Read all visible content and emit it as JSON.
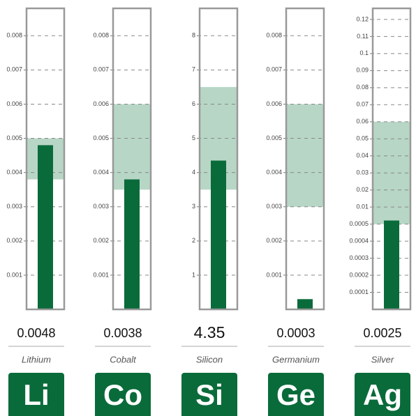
{
  "chart_data": [
    {
      "type": "gauge",
      "name": "Lithium",
      "symbol": "Li",
      "value": 0.0048,
      "band": [
        0.0038,
        0.005
      ],
      "ylim": [
        0,
        0.0088
      ],
      "yticks": [
        0.001,
        0.002,
        0.003,
        0.004,
        0.005,
        0.006,
        0.007,
        0.008
      ],
      "color": "#0a6b3a",
      "band_color": "#b7d6c6"
    },
    {
      "type": "gauge",
      "name": "Cobalt",
      "symbol": "Co",
      "value": 0.0038,
      "band": [
        0.0035,
        0.006
      ],
      "ylim": [
        0,
        0.0088
      ],
      "yticks": [
        0.001,
        0.002,
        0.003,
        0.004,
        0.005,
        0.006,
        0.007,
        0.008
      ],
      "color": "#0a6b3a",
      "band_color": "#b7d6c6"
    },
    {
      "type": "gauge",
      "name": "Silicon",
      "symbol": "Si",
      "value": 4.35,
      "band": [
        3.5,
        6.5
      ],
      "ylim": [
        0,
        8.8
      ],
      "yticks": [
        1,
        2,
        3,
        4,
        5,
        6,
        7,
        8
      ],
      "color": "#0a6b3a",
      "band_color": "#b7d6c6"
    },
    {
      "type": "gauge",
      "name": "Germanium",
      "symbol": "Ge",
      "value": 0.0003,
      "band": [
        0.003,
        0.006
      ],
      "ylim": [
        0,
        0.0088
      ],
      "yticks": [
        0.001,
        0.002,
        0.003,
        0.004,
        0.005,
        0.006,
        0.007,
        0.008
      ],
      "color": "#0a6b3a",
      "band_color": "#b7d6c6"
    },
    {
      "type": "gauge",
      "name": "Silver",
      "symbol": "Ag",
      "value": 0.0025,
      "band": [
        0.0005,
        0.06
      ],
      "ylim": [
        0,
        0.1265
      ],
      "yticks": [
        0.0001,
        0.0002,
        0.0003,
        0.0004,
        0.0005,
        0.01,
        0.02,
        0.03,
        0.04,
        0.05,
        0.06,
        0.07,
        0.08,
        0.09,
        0.1,
        0.11,
        0.12
      ],
      "color": "#0a6b3a",
      "band_color": "#b7d6c6"
    }
  ]
}
